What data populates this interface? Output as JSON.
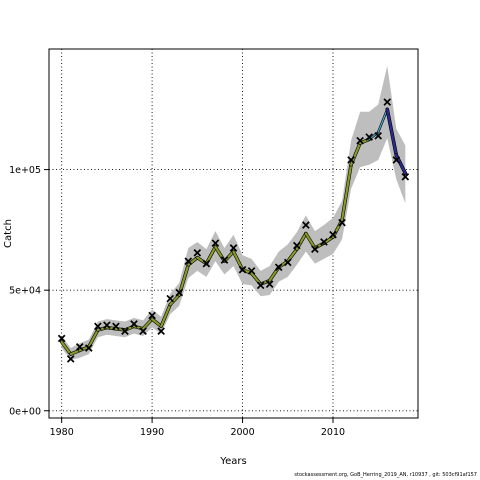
{
  "chart_data": {
    "type": "line",
    "title": "",
    "xlabel": "Years",
    "ylabel": "Catch",
    "xlim": [
      1978.6,
      2019.4
    ],
    "ylim": [
      -3000,
      150000
    ],
    "x_ticks": [
      1980,
      1990,
      2000,
      2010
    ],
    "x_tick_labels": [
      "1980",
      "1990",
      "2000",
      "2010"
    ],
    "y_ticks": [
      0,
      50000,
      100000
    ],
    "y_tick_labels": [
      "0e+00",
      "5e+04",
      "1e+05"
    ],
    "grid": true,
    "colors": {
      "band": "#bebebe",
      "model_line": "#8a9a2a",
      "model_line_late": "#4aa8d8",
      "model_line_last": "#2a2a8a",
      "observed_marker": "#000000"
    },
    "series": [
      {
        "marker": "x",
        "x": [
          1980,
          1981,
          1982,
          1983,
          1984,
          1985,
          1986,
          1987,
          1988,
          1989,
          1990,
          1991,
          1992,
          1993,
          1994,
          1995,
          1996,
          1997,
          1998,
          1999,
          2000,
          2001,
          2002,
          2003,
          2004,
          2005,
          2006,
          2007,
          2008,
          2009,
          2010,
          2011,
          2012,
          2013,
          2014,
          2015,
          2016,
          2017,
          2018
        ],
        "values": [
          30000,
          21500,
          26500,
          26000,
          35000,
          35500,
          35000,
          33000,
          36000,
          33000,
          39500,
          33000,
          46500,
          49000,
          62000,
          65500,
          61000,
          69500,
          62500,
          67500,
          58500,
          58000,
          52000,
          52500,
          59500,
          61500,
          68500,
          77000,
          67000,
          70000,
          73000,
          78000,
          104000,
          112000,
          113500,
          114000,
          128000,
          104000,
          97000
        ]
      },
      {
        "line": "solid",
        "x": [
          1980,
          1981,
          1982,
          1983,
          1984,
          1985,
          1986,
          1987,
          1988,
          1989,
          1990,
          1991,
          1992,
          1993,
          1994,
          1995,
          1996,
          1997,
          1998,
          1999,
          2000,
          2001,
          2002,
          2003,
          2004,
          2005,
          2006,
          2007,
          2008,
          2009,
          2010,
          2011,
          2012,
          2013,
          2014,
          2015,
          2016,
          2017,
          2018
        ],
        "values": [
          28500,
          23500,
          25000,
          26500,
          33500,
          34500,
          34000,
          33500,
          35000,
          34000,
          38000,
          35000,
          44000,
          48000,
          60500,
          63500,
          61000,
          68000,
          62000,
          66000,
          58500,
          57000,
          52500,
          54000,
          59500,
          62000,
          67000,
          73500,
          67500,
          69500,
          72000,
          79000,
          102000,
          111000,
          112500,
          115500,
          125000,
          106000,
          98500
        ]
      }
    ],
    "band": {
      "x": [
        1980,
        1981,
        1982,
        1983,
        1984,
        1985,
        1986,
        1987,
        1988,
        1989,
        1990,
        1991,
        1992,
        1993,
        1994,
        1995,
        1996,
        1997,
        1998,
        1999,
        2000,
        2001,
        2002,
        2003,
        2004,
        2005,
        2006,
        2007,
        2008,
        2009,
        2010,
        2011,
        2012,
        2013,
        2014,
        2015,
        2016,
        2017,
        2018
      ],
      "lower": [
        26000,
        21000,
        22000,
        23500,
        30500,
        31500,
        31000,
        30500,
        32000,
        31000,
        34500,
        32000,
        40000,
        43500,
        55000,
        58000,
        55500,
        62000,
        56500,
        60000,
        52500,
        52000,
        47500,
        48000,
        53500,
        55500,
        60500,
        66000,
        61000,
        63000,
        65000,
        71000,
        92000,
        101000,
        102000,
        104000,
        113000,
        96000,
        86000
      ],
      "upper": [
        31000,
        26000,
        28000,
        29500,
        37000,
        38000,
        37500,
        37000,
        38500,
        37500,
        42000,
        39000,
        48500,
        53000,
        67500,
        70000,
        67000,
        74500,
        67500,
        73000,
        64500,
        63000,
        58000,
        60000,
        66000,
        69000,
        74000,
        81000,
        74500,
        77000,
        80000,
        87000,
        112000,
        124000,
        124000,
        127000,
        143000,
        117000,
        110000
      ]
    }
  },
  "footer": {
    "text": "stockassessment.org, GoB_Herring_2019_AN, r10937 , git: 503cf91af157"
  }
}
